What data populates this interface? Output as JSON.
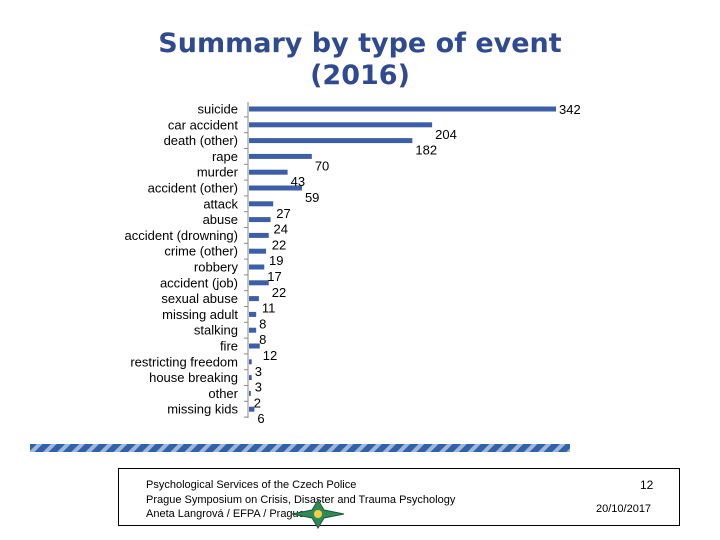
{
  "title_lines": [
    "Summary by type of event",
    "(2016)"
  ],
  "chart_data": {
    "type": "bar",
    "orientation": "horizontal",
    "title": "Summary by type of event (2016)",
    "categories": [
      "suicide",
      "car accident",
      "death (other)",
      "rape",
      "murder",
      "accident (other)",
      "attack",
      "abuse",
      "accident (drowning)",
      "crime (other)",
      "robbery",
      "accident (job)",
      "sexual abuse",
      "missing adult",
      "stalking",
      "fire",
      "restricting freedom",
      "house breaking",
      "other",
      "missing kids"
    ],
    "values": [
      342,
      204,
      182,
      70,
      43,
      59,
      27,
      24,
      22,
      19,
      17,
      22,
      11,
      8,
      8,
      12,
      3,
      3,
      2,
      6
    ],
    "xlim": [
      0,
      342
    ],
    "grid": false,
    "legend": "none",
    "bar_color": "#3d5fa8"
  },
  "footer": {
    "line1": "Psychological Services of the Czech Police",
    "line2": "Prague Symposium on Crisis, Disaster and Trauma Psychology",
    "line3": "Aneta Langrová / EFPA / Prague",
    "page_number": "12",
    "date": "20/10/2017"
  }
}
